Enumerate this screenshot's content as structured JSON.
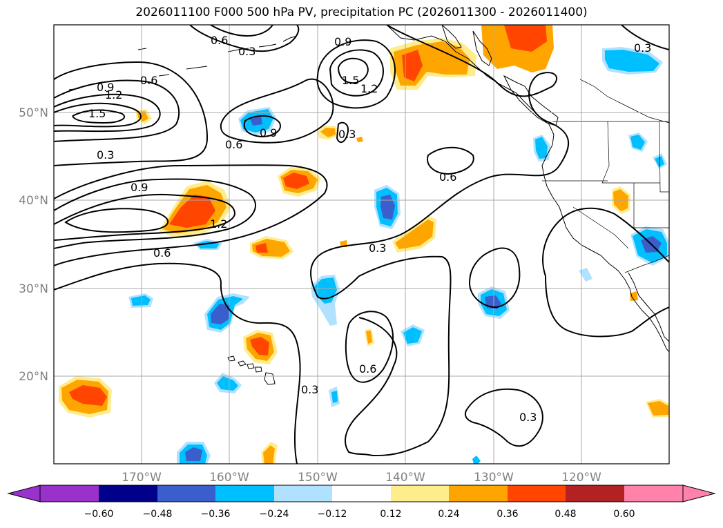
{
  "title": "2026011100 F000 500 hPa PV, precipitation PC (2026011300 - 2026011400)",
  "lon_ticks": [
    "170°W",
    "160°W",
    "150°W",
    "140°W",
    "130°W",
    "120°W"
  ],
  "lat_ticks": [
    "50°N",
    "40°N",
    "30°N",
    "20°N"
  ],
  "contour_labels": [
    "0.6",
    "0.3",
    "0.9",
    "1.5",
    "1.2",
    "0.9",
    "1.2",
    "1.5",
    "0.6",
    "0.9",
    "0.3",
    "0.6",
    "0.3",
    "0.9",
    "1.2",
    "0.6",
    "0.6",
    "0.3",
    "0.3",
    "0.6",
    "0.3",
    "0.3"
  ],
  "colorbar": {
    "labels": [
      "−0.60",
      "−0.48",
      "−0.36",
      "−0.24",
      "−0.12",
      "0.12",
      "0.24",
      "0.36",
      "0.48",
      "0.60"
    ],
    "colors": [
      "#9932cc",
      "#00008b",
      "#3a5fcd",
      "#00bfff",
      "#b0e2ff",
      "#ffffff",
      "#ffec8b",
      "#ffa500",
      "#ff4500",
      "#b22222",
      "#ff82ab"
    ]
  }
}
